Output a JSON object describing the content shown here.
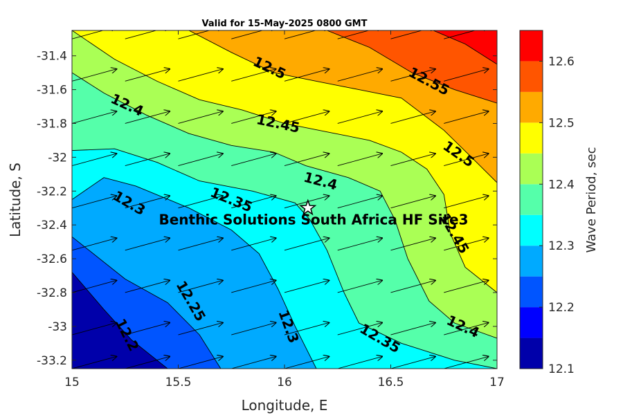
{
  "title": "Valid for 15-May-2025 0800 GMT",
  "x_axis": {
    "label": "Longitude, E",
    "range": [
      15,
      17
    ],
    "ticks": [
      {
        "value": 15,
        "label": "15"
      },
      {
        "value": 15.5,
        "label": "15.5"
      },
      {
        "value": 16,
        "label": "16"
      },
      {
        "value": 16.5,
        "label": "16.5"
      },
      {
        "value": 17,
        "label": "17"
      }
    ]
  },
  "y_axis": {
    "label": "Latitude, S",
    "range": [
      -33.25,
      -31.25
    ],
    "ticks": [
      {
        "value": -31.4,
        "label": "-31.4"
      },
      {
        "value": -31.6,
        "label": "-31.6"
      },
      {
        "value": -31.8,
        "label": "-31.8"
      },
      {
        "value": -32.0,
        "label": "-32"
      },
      {
        "value": -32.2,
        "label": "-32.2"
      },
      {
        "value": -32.4,
        "label": "-32.4"
      },
      {
        "value": -32.6,
        "label": "-32.6"
      },
      {
        "value": -32.8,
        "label": "-32.8"
      },
      {
        "value": -33.0,
        "label": "-33"
      },
      {
        "value": -33.2,
        "label": "-33.2"
      }
    ]
  },
  "colorbar": {
    "label": "Wave Period, sec",
    "range": [
      12.1,
      12.65
    ],
    "bands": [
      {
        "from": 12.1,
        "to": 12.15,
        "color": "#0000aa"
      },
      {
        "from": 12.15,
        "to": 12.2,
        "color": "#0000ff"
      },
      {
        "from": 12.2,
        "to": 12.25,
        "color": "#0055ff"
      },
      {
        "from": 12.25,
        "to": 12.3,
        "color": "#00aaff"
      },
      {
        "from": 12.3,
        "to": 12.35,
        "color": "#00ffff"
      },
      {
        "from": 12.35,
        "to": 12.4,
        "color": "#55ffaa"
      },
      {
        "from": 12.4,
        "to": 12.45,
        "color": "#aaff55"
      },
      {
        "from": 12.45,
        "to": 12.5,
        "color": "#ffff00"
      },
      {
        "from": 12.5,
        "to": 12.55,
        "color": "#ffaa00"
      },
      {
        "from": 12.55,
        "to": 12.6,
        "color": "#ff5500"
      },
      {
        "from": 12.6,
        "to": 12.65,
        "color": "#ff0000"
      }
    ],
    "ticks": [
      {
        "value": 12.1,
        "label": "12.1"
      },
      {
        "value": 12.2,
        "label": "12.2"
      },
      {
        "value": 12.3,
        "label": "12.3"
      },
      {
        "value": 12.4,
        "label": "12.4"
      },
      {
        "value": 12.5,
        "label": "12.5"
      },
      {
        "value": 12.6,
        "label": "12.6"
      }
    ]
  },
  "contours": [
    {
      "value": 12.2,
      "points": [
        [
          15.0,
          -32.68
        ],
        [
          15.15,
          -32.9
        ],
        [
          15.28,
          -33.08
        ],
        [
          15.45,
          -33.25
        ]
      ]
    },
    {
      "value": 12.25,
      "points": [
        [
          15.0,
          -32.47
        ],
        [
          15.25,
          -32.72
        ],
        [
          15.45,
          -32.86
        ],
        [
          15.6,
          -33.05
        ],
        [
          15.7,
          -33.25
        ]
      ]
    },
    {
      "value": 12.3,
      "points": [
        [
          15.0,
          -32.25
        ],
        [
          15.15,
          -32.12
        ],
        [
          15.3,
          -32.17
        ],
        [
          15.55,
          -32.3
        ],
        [
          15.75,
          -32.43
        ],
        [
          15.88,
          -32.57
        ],
        [
          15.97,
          -32.78
        ],
        [
          16.05,
          -33.0
        ],
        [
          16.15,
          -33.25
        ]
      ]
    },
    {
      "value": 12.35,
      "points": [
        [
          15.0,
          -31.96
        ],
        [
          15.2,
          -31.95
        ],
        [
          15.4,
          -32.03
        ],
        [
          15.6,
          -32.14
        ],
        [
          15.85,
          -32.2
        ],
        [
          16.05,
          -32.27
        ],
        [
          16.12,
          -32.37
        ],
        [
          16.2,
          -32.55
        ],
        [
          16.28,
          -32.8
        ],
        [
          16.35,
          -32.98
        ],
        [
          16.55,
          -33.1
        ],
        [
          16.8,
          -33.2
        ],
        [
          17.0,
          -33.25
        ]
      ]
    },
    {
      "value": 12.4,
      "points": [
        [
          15.0,
          -31.5
        ],
        [
          15.15,
          -31.62
        ],
        [
          15.35,
          -31.75
        ],
        [
          15.55,
          -31.86
        ],
        [
          15.75,
          -31.93
        ],
        [
          15.95,
          -31.97
        ],
        [
          16.1,
          -32.05
        ],
        [
          16.3,
          -32.12
        ],
        [
          16.45,
          -32.2
        ],
        [
          16.52,
          -32.37
        ],
        [
          16.58,
          -32.6
        ],
        [
          16.68,
          -32.85
        ],
        [
          16.8,
          -32.98
        ],
        [
          17.0,
          -33.07
        ]
      ]
    },
    {
      "value": 12.45,
      "points": [
        [
          15.0,
          -31.25
        ],
        [
          15.2,
          -31.42
        ],
        [
          15.4,
          -31.55
        ],
        [
          15.6,
          -31.66
        ],
        [
          15.8,
          -31.72
        ],
        [
          16.0,
          -31.8
        ],
        [
          16.2,
          -31.85
        ],
        [
          16.4,
          -31.9
        ],
        [
          16.55,
          -31.97
        ],
        [
          16.67,
          -32.07
        ],
        [
          16.75,
          -32.22
        ],
        [
          16.78,
          -32.45
        ],
        [
          16.85,
          -32.65
        ],
        [
          17.0,
          -32.8
        ]
      ]
    },
    {
      "value": 12.5,
      "points": [
        [
          15.55,
          -31.25
        ],
        [
          15.75,
          -31.38
        ],
        [
          15.95,
          -31.5
        ],
        [
          16.15,
          -31.55
        ],
        [
          16.35,
          -31.6
        ],
        [
          16.55,
          -31.65
        ],
        [
          16.75,
          -31.84
        ],
        [
          16.88,
          -32.0
        ],
        [
          17.0,
          -32.15
        ]
      ]
    },
    {
      "value": 12.55,
      "points": [
        [
          16.2,
          -31.25
        ],
        [
          16.4,
          -31.35
        ],
        [
          16.6,
          -31.5
        ],
        [
          16.8,
          -31.6
        ],
        [
          17.0,
          -31.68
        ]
      ]
    },
    {
      "value": 12.6,
      "points": [
        [
          16.7,
          -31.25
        ],
        [
          16.85,
          -31.33
        ],
        [
          17.0,
          -31.45
        ]
      ]
    }
  ],
  "contour_labels": [
    {
      "text": "12.2",
      "lon": 15.26,
      "lat": -33.05,
      "angle": 63
    },
    {
      "text": "12.25",
      "lon": 15.56,
      "lat": -32.85,
      "angle": 60
    },
    {
      "text": "12.3",
      "lon": 15.27,
      "lat": -32.27,
      "angle": 30
    },
    {
      "text": "12.3",
      "lon": 16.02,
      "lat": -33.0,
      "angle": 70
    },
    {
      "text": "12.35",
      "lon": 15.75,
      "lat": -32.25,
      "angle": 22
    },
    {
      "text": "12.35",
      "lon": 16.45,
      "lat": -33.07,
      "angle": 30
    },
    {
      "text": "12.4",
      "lon": 15.26,
      "lat": -31.69,
      "angle": 25
    },
    {
      "text": "12.4",
      "lon": 16.17,
      "lat": -32.14,
      "angle": 15
    },
    {
      "text": "12.4",
      "lon": 16.84,
      "lat": -33.0,
      "angle": 25
    },
    {
      "text": "12.45",
      "lon": 15.97,
      "lat": -31.8,
      "angle": 12
    },
    {
      "text": "12.45",
      "lon": 16.8,
      "lat": -32.45,
      "angle": 60
    },
    {
      "text": "12.5",
      "lon": 15.93,
      "lat": -31.47,
      "angle": 25
    },
    {
      "text": "12.5",
      "lon": 16.82,
      "lat": -31.98,
      "angle": 35
    },
    {
      "text": "12.55",
      "lon": 16.68,
      "lat": -31.55,
      "angle": 28
    }
  ],
  "arrows": {
    "dlon": 0.21,
    "dlat": 0.072,
    "lons": [
      15.0,
      15.25,
      15.5,
      15.75,
      16.0,
      16.25,
      16.5,
      16.75,
      17.0
    ],
    "lats": [
      -31.3,
      -31.55,
      -31.8,
      -32.05,
      -32.3,
      -32.55,
      -32.8,
      -33.05,
      -33.25
    ]
  },
  "site": {
    "label": "Benthic Solutions South Africa HF Site3",
    "lon": 16.11,
    "lat": -32.3
  }
}
